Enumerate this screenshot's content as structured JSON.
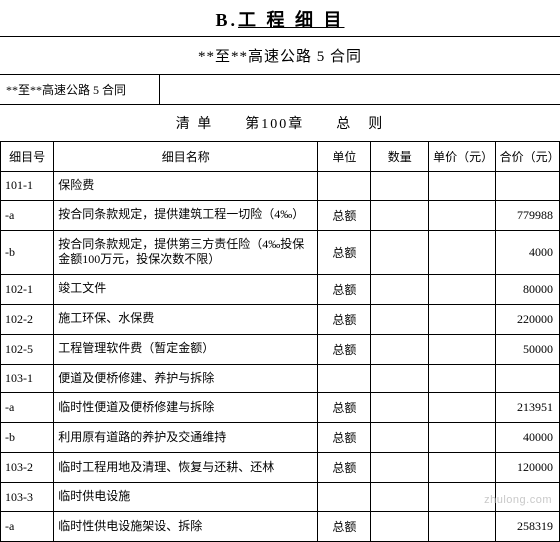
{
  "title_prefix": "B.",
  "title_main": "工 程 细 目",
  "subtitle": "**至**高速公路 5 合同",
  "contract_label": "**至**高速公路 5 合同",
  "chapter_text": "清 单　　第100章　　总　则",
  "headers": {
    "code": "细目号",
    "name": "细目名称",
    "unit": "单位",
    "qty": "数量",
    "price": "单价（元）",
    "total": "合价（元）"
  },
  "rows": [
    {
      "code": "101-1",
      "name": "保险费",
      "unit": "",
      "qty": "",
      "price": "",
      "total": ""
    },
    {
      "code": "-a",
      "name": "按合同条款规定，提供建筑工程一切险（4‰）",
      "unit": "总额",
      "qty": "",
      "price": "",
      "total": "779988"
    },
    {
      "code": "-b",
      "name": "按合同条款规定，提供第三方责任险（4‰投保金额100万元，投保次数不限）",
      "unit": "总额",
      "qty": "",
      "price": "",
      "total": "4000"
    },
    {
      "code": "102-1",
      "name": "竣工文件",
      "unit": "总额",
      "qty": "",
      "price": "",
      "total": "80000"
    },
    {
      "code": "102-2",
      "name": "施工环保、水保费",
      "unit": "总额",
      "qty": "",
      "price": "",
      "total": "220000"
    },
    {
      "code": "102-5",
      "name": "工程管理软件费（暂定金额）",
      "unit": "总额",
      "qty": "",
      "price": "",
      "total": "50000"
    },
    {
      "code": "103-1",
      "name": "便道及便桥修建、养护与拆除",
      "unit": "",
      "qty": "",
      "price": "",
      "total": ""
    },
    {
      "code": "-a",
      "name": "临时性便道及便桥修建与拆除",
      "unit": "总额",
      "qty": "",
      "price": "",
      "total": "213951"
    },
    {
      "code": "-b",
      "name": "利用原有道路的养护及交通维持",
      "unit": "总额",
      "qty": "",
      "price": "",
      "total": "40000"
    },
    {
      "code": "103-2",
      "name": "临时工程用地及清理、恢复与还耕、还林",
      "unit": "总额",
      "qty": "",
      "price": "",
      "total": "120000"
    },
    {
      "code": "103-3",
      "name": "临时供电设施",
      "unit": "",
      "qty": "",
      "price": "",
      "total": ""
    },
    {
      "code": "-a",
      "name": "临时性供电设施架设、拆除",
      "unit": "总额",
      "qty": "",
      "price": "",
      "total": "258319"
    }
  ],
  "watermark": "zhulong.com"
}
